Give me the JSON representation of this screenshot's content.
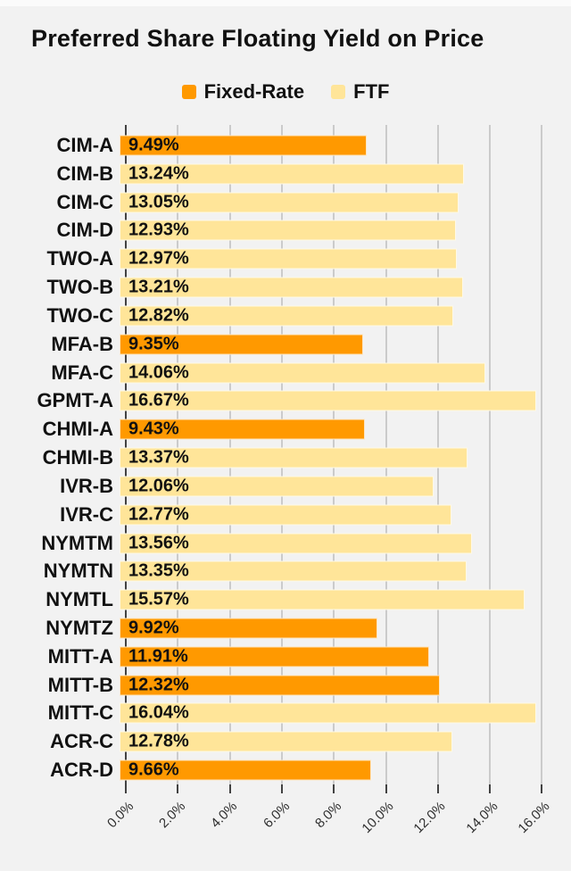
{
  "chart": {
    "title": "Preferred Share Floating Yield on Price",
    "legend": [
      {
        "label": "Fixed-Rate",
        "series": "fixed",
        "color": "#FF9900"
      },
      {
        "label": "FTF",
        "series": "ftf",
        "color": "#FFE599"
      }
    ]
  },
  "chart_data": {
    "type": "bar",
    "orientation": "horizontal",
    "title": "Preferred Share Floating Yield on Price",
    "legend_position": "top",
    "grid": true,
    "xlim": [
      0,
      16.02
    ],
    "x_tick_values": [
      0,
      2,
      4,
      6,
      8,
      10,
      12,
      14,
      16
    ],
    "x_tick_labels": [
      "0.0%",
      "2.0%",
      "4.0%",
      "6.0%",
      "8.0%",
      "10.0%",
      "12.0%",
      "14.0%",
      "16.0%"
    ],
    "xlabel": "",
    "ylabel": "",
    "categories": [
      "CIM-A",
      "CIM-B",
      "CIM-C",
      "CIM-D",
      "TWO-A",
      "TWO-B",
      "TWO-C",
      "MFA-B",
      "MFA-C",
      "GPMT-A",
      "CHMI-A",
      "CHMI-B",
      "IVR-B",
      "IVR-C",
      "NYMTM",
      "NYMTN",
      "NYMTL",
      "NYMTZ",
      "MITT-A",
      "MITT-B",
      "MITT-C",
      "ACR-C",
      "ACR-D"
    ],
    "bars": [
      {
        "category": "CIM-A",
        "value": 9.49,
        "label": "9.49%",
        "series": "fixed"
      },
      {
        "category": "CIM-B",
        "value": 13.24,
        "label": "13.24%",
        "series": "ftf"
      },
      {
        "category": "CIM-C",
        "value": 13.05,
        "label": "13.05%",
        "series": "ftf"
      },
      {
        "category": "CIM-D",
        "value": 12.93,
        "label": "12.93%",
        "series": "ftf"
      },
      {
        "category": "TWO-A",
        "value": 12.97,
        "label": "12.97%",
        "series": "ftf"
      },
      {
        "category": "TWO-B",
        "value": 13.21,
        "label": "13.21%",
        "series": "ftf"
      },
      {
        "category": "TWO-C",
        "value": 12.82,
        "label": "12.82%",
        "series": "ftf"
      },
      {
        "category": "MFA-B",
        "value": 9.35,
        "label": "9.35%",
        "series": "fixed"
      },
      {
        "category": "MFA-C",
        "value": 14.06,
        "label": "14.06%",
        "series": "ftf"
      },
      {
        "category": "GPMT-A",
        "value": 16.67,
        "label": "16.67%",
        "series": "ftf"
      },
      {
        "category": "CHMI-A",
        "value": 9.43,
        "label": "9.43%",
        "series": "fixed"
      },
      {
        "category": "CHMI-B",
        "value": 13.37,
        "label": "13.37%",
        "series": "ftf"
      },
      {
        "category": "IVR-B",
        "value": 12.06,
        "label": "12.06%",
        "series": "ftf"
      },
      {
        "category": "IVR-C",
        "value": 12.77,
        "label": "12.77%",
        "series": "ftf"
      },
      {
        "category": "NYMTM",
        "value": 13.56,
        "label": "13.56%",
        "series": "ftf"
      },
      {
        "category": "NYMTN",
        "value": 13.35,
        "label": "13.35%",
        "series": "ftf"
      },
      {
        "category": "NYMTL",
        "value": 15.57,
        "label": "15.57%",
        "series": "ftf"
      },
      {
        "category": "NYMTZ",
        "value": 9.92,
        "label": "9.92%",
        "series": "fixed"
      },
      {
        "category": "MITT-A",
        "value": 11.91,
        "label": "11.91%",
        "series": "fixed"
      },
      {
        "category": "MITT-B",
        "value": 12.32,
        "label": "12.32%",
        "series": "fixed"
      },
      {
        "category": "MITT-C",
        "value": 16.04,
        "label": "16.04%",
        "series": "ftf"
      },
      {
        "category": "ACR-C",
        "value": 12.78,
        "label": "12.78%",
        "series": "ftf"
      },
      {
        "category": "ACR-D",
        "value": 9.66,
        "label": "9.66%",
        "series": "fixed"
      }
    ]
  },
  "colors": {
    "background": "#F2F2F2",
    "fixed_rate_bar": "#FF9900",
    "ftf_bar": "#FFE599",
    "gridline": "#CBCBCB",
    "axis_line": "#424242",
    "label_text": "#111111",
    "tick_label_text": "#2E2E2E"
  }
}
